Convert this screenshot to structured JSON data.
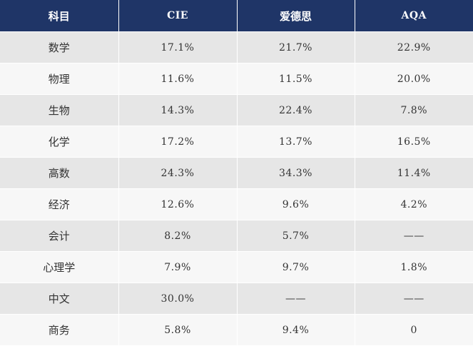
{
  "table": {
    "headers": [
      "科目",
      "CIE",
      "爱德思",
      "AQA"
    ],
    "rows": [
      [
        "数学",
        "17.1%",
        "21.7%",
        "22.9%"
      ],
      [
        "物理",
        "11.6%",
        "11.5%",
        "20.0%"
      ],
      [
        "生物",
        "14.3%",
        "22.4%",
        "7.8%"
      ],
      [
        "化学",
        "17.2%",
        "13.7%",
        "16.5%"
      ],
      [
        "高数",
        "24.3%",
        "34.3%",
        "11.4%"
      ],
      [
        "经济",
        "12.6%",
        "9.6%",
        "4.2%"
      ],
      [
        "会计",
        "8.2%",
        "5.7%",
        "——"
      ],
      [
        "心理学",
        "7.9%",
        "9.7%",
        "1.8%"
      ],
      [
        "中文",
        "30.0%",
        "——",
        "——"
      ],
      [
        "商务",
        "5.8%",
        "9.4%",
        "0"
      ]
    ],
    "colors": {
      "header_bg": "#1f3567",
      "header_text": "#ffffff",
      "row_odd_bg": "#e6e6e6",
      "row_even_bg": "#f7f7f7",
      "cell_text": "#333333"
    }
  }
}
